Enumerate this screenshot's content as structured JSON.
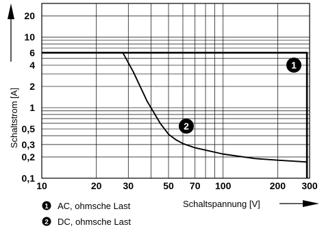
{
  "chart_data": {
    "type": "line",
    "x_scale": "log",
    "y_scale": "log",
    "xlim": [
      10,
      300
    ],
    "ylim": [
      0.1,
      30
    ],
    "xlabel": "Schaltspannung [V]",
    "ylabel": "Schaltstrom [A]",
    "x_tick_labels": [
      "10",
      "20",
      "30",
      "50",
      "70",
      "100",
      "200",
      "300"
    ],
    "x_tick_values": [
      10,
      20,
      30,
      50,
      70,
      100,
      200,
      300
    ],
    "y_tick_labels": [
      "0,1",
      "0,2",
      "0,3",
      "0,5",
      "1",
      "2",
      "4",
      "6",
      "10",
      "20"
    ],
    "y_tick_values": [
      0.1,
      0.2,
      0.3,
      0.5,
      1,
      2,
      4,
      6,
      10,
      20
    ],
    "grid": true,
    "series": [
      {
        "marker": "1",
        "x": [
          10,
          290,
          290
        ],
        "y": [
          6,
          6,
          0.1
        ]
      },
      {
        "marker": "2",
        "x": [
          10,
          28,
          32,
          38,
          45,
          50,
          55,
          60,
          70,
          100,
          150,
          200,
          290
        ],
        "y": [
          6,
          6,
          3.2,
          1.25,
          0.6,
          0.42,
          0.35,
          0.31,
          0.27,
          0.22,
          0.19,
          0.18,
          0.17
        ]
      }
    ],
    "legend": [
      {
        "marker": "1",
        "label": "AC, ohmsche Last"
      },
      {
        "marker": "2",
        "label": "DC, ohmsche Last"
      }
    ]
  }
}
